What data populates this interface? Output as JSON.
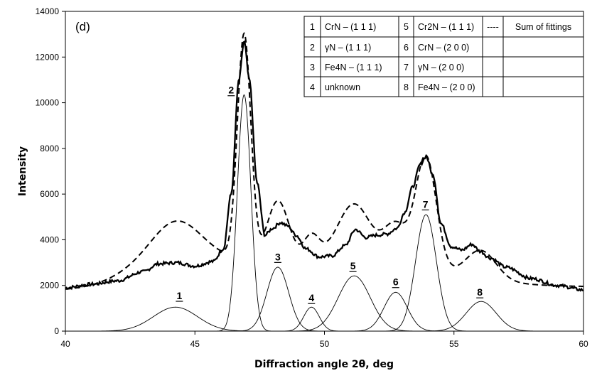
{
  "chart_data": {
    "type": "line",
    "panel_label": "(d)",
    "xlabel": "Diffraction angle 2θ, deg",
    "ylabel": "Intensity",
    "xlim": [
      40,
      60
    ],
    "ylim": [
      0,
      14000
    ],
    "xticks": [
      40,
      45,
      50,
      55,
      60
    ],
    "yticks": [
      0,
      2000,
      4000,
      6000,
      8000,
      10000,
      12000,
      14000
    ],
    "grid": false,
    "legend_placement": "top-right",
    "legend": [
      {
        "num": "1",
        "label": "CrN – (1 1 1)"
      },
      {
        "num": "2",
        "label": "γN – (1 1 1)"
      },
      {
        "num": "3",
        "label": "Fe4N – (1 1 1)"
      },
      {
        "num": "4",
        "label": "unknown"
      },
      {
        "num": "5",
        "label": "Cr2N – (1 1 1)"
      },
      {
        "num": "6",
        "label": "CrN – (2 0 0)"
      },
      {
        "num": "7",
        "label": "γN – (2 0 0)"
      },
      {
        "num": "8",
        "label": "Fe4N – (2 0 0)"
      },
      {
        "num": "----",
        "label": "Sum of fittings"
      }
    ],
    "peaks": [
      {
        "label": "1",
        "center": 44.25,
        "height": 1050,
        "width": 0.85
      },
      {
        "label": "2",
        "center": 46.9,
        "height": 10350,
        "width": 0.26
      },
      {
        "label": "3",
        "center": 48.2,
        "height": 2800,
        "width": 0.42
      },
      {
        "label": "4",
        "center": 49.5,
        "height": 1050,
        "width": 0.3
      },
      {
        "label": "5",
        "center": 51.15,
        "height": 2420,
        "width": 0.62
      },
      {
        "label": "6",
        "center": 52.75,
        "height": 1700,
        "width": 0.45
      },
      {
        "label": "7",
        "center": 53.92,
        "height": 5100,
        "width": 0.4
      },
      {
        "label": "8",
        "center": 56.05,
        "height": 1300,
        "width": 0.58
      }
    ],
    "measured": [
      [
        40,
        1900
      ],
      [
        41,
        2050
      ],
      [
        42,
        2200
      ],
      [
        43,
        2600
      ],
      [
        43.6,
        2950
      ],
      [
        44.3,
        3000
      ],
      [
        45,
        2850
      ],
      [
        45.7,
        3050
      ],
      [
        46.1,
        3600
      ],
      [
        46.4,
        6000
      ],
      [
        46.7,
        11000
      ],
      [
        46.9,
        12700
      ],
      [
        47.1,
        11000
      ],
      [
        47.4,
        6500
      ],
      [
        47.7,
        4200
      ],
      [
        48,
        4500
      ],
      [
        48.3,
        4750
      ],
      [
        48.6,
        4600
      ],
      [
        48.9,
        4200
      ],
      [
        49.3,
        3600
      ],
      [
        49.8,
        3250
      ],
      [
        50.3,
        3300
      ],
      [
        50.8,
        3750
      ],
      [
        51.2,
        4450
      ],
      [
        51.6,
        4100
      ],
      [
        52,
        4200
      ],
      [
        52.4,
        4250
      ],
      [
        52.8,
        4500
      ],
      [
        53.1,
        5200
      ],
      [
        53.4,
        6300
      ],
      [
        53.7,
        7300
      ],
      [
        53.92,
        7650
      ],
      [
        54.2,
        6800
      ],
      [
        54.5,
        4700
      ],
      [
        54.9,
        3700
      ],
      [
        55.3,
        3550
      ],
      [
        55.7,
        3800
      ],
      [
        56,
        3500
      ],
      [
        56.4,
        3200
      ],
      [
        57,
        2800
      ],
      [
        58,
        2300
      ],
      [
        59,
        2000
      ],
      [
        60,
        1800
      ]
    ]
  }
}
